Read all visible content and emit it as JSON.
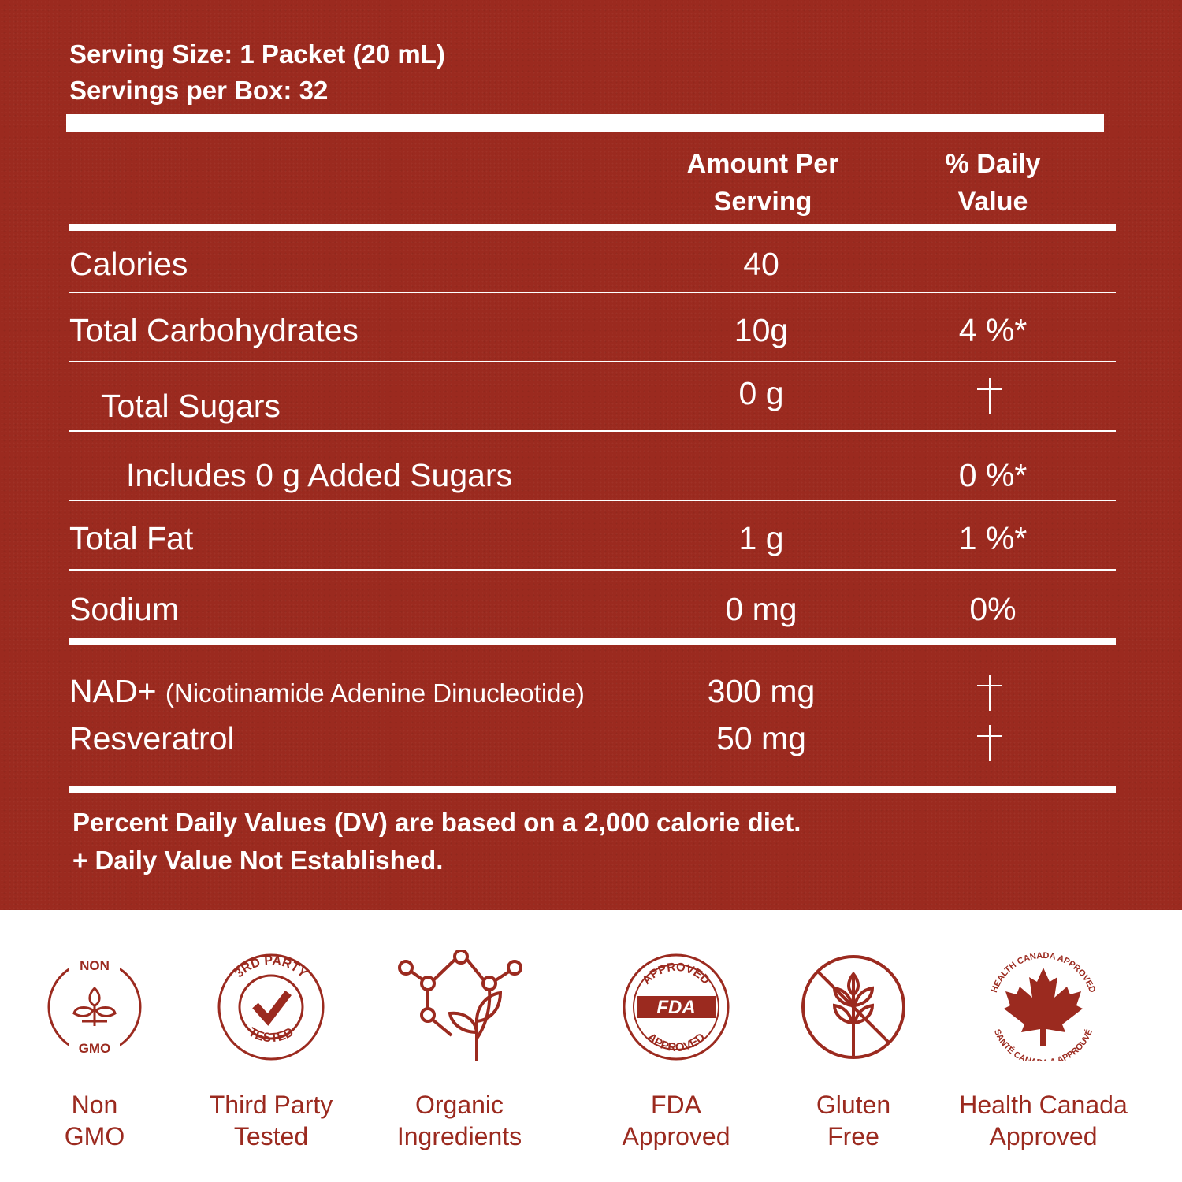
{
  "colors": {
    "panel_background": "#9b2a1f",
    "panel_text": "#ffffff",
    "page_background": "#ffffff",
    "badge_color": "#9b2a1f"
  },
  "panel": {
    "serving_size": "Serving Size: 1 Packet (20 mL)",
    "servings_per_box": "Servings per Box: 32",
    "header_amount_line1": "Amount Per",
    "header_amount_line2": "Serving",
    "header_dv_line1": "% Daily",
    "header_dv_line2": "Value",
    "rows": [
      {
        "label": "Calories",
        "amount": "40",
        "dv": ""
      },
      {
        "label": "Total Carbohydrates",
        "amount": "10g",
        "dv": "4 %*"
      },
      {
        "label": "Total Sugars",
        "amount": "0 g",
        "dv_icon": "dagger-icon"
      },
      {
        "label": "Includes 0 g Added Sugars",
        "amount": "",
        "dv": "0 %*"
      },
      {
        "label": "Total Fat",
        "amount": "1 g",
        "dv": "1 %*"
      },
      {
        "label": "Sodium",
        "amount": "0 mg",
        "dv": "0%"
      }
    ],
    "actives": [
      {
        "label": "NAD+ ",
        "sublabel": "(Nicotinamide Adenine Dinucleotide)",
        "amount": "300 mg",
        "dv_icon": "dagger-icon"
      },
      {
        "label": "Resveratrol",
        "amount": "50 mg",
        "dv_icon": "dagger-icon"
      }
    ],
    "footnote_dv": "Percent Daily Values (DV) are based on a 2,000 calorie diet.",
    "footnote_dagger": "+ Daily Value Not Established."
  },
  "badges": [
    {
      "icon": "non-gmo-icon",
      "top": "NON",
      "bottom": "GMO",
      "caption1": "Non",
      "caption2": "GMO"
    },
    {
      "icon": "third-party-tested-icon",
      "ring_top": "3RD PARTY",
      "ring_bottom": "TESTED",
      "caption1": "Third Party",
      "caption2": "Tested"
    },
    {
      "icon": "molecule-leaf-icon",
      "caption1": "Organic",
      "caption2": "Ingredients"
    },
    {
      "icon": "fda-approved-icon",
      "ring_top": "APPROVED",
      "ring_bottom": "APPROVED",
      "center": "FDA",
      "caption1": "FDA",
      "caption2": "Approved"
    },
    {
      "icon": "gluten-free-icon",
      "caption1": "Gluten",
      "caption2": "Free"
    },
    {
      "icon": "health-canada-icon",
      "ring_top": "HEALTH CANADA APPROVED",
      "ring_bottom": "SANTÉ CANADA A APPROUVÉ",
      "caption1": "Health Canada",
      "caption2": "Approved"
    }
  ]
}
